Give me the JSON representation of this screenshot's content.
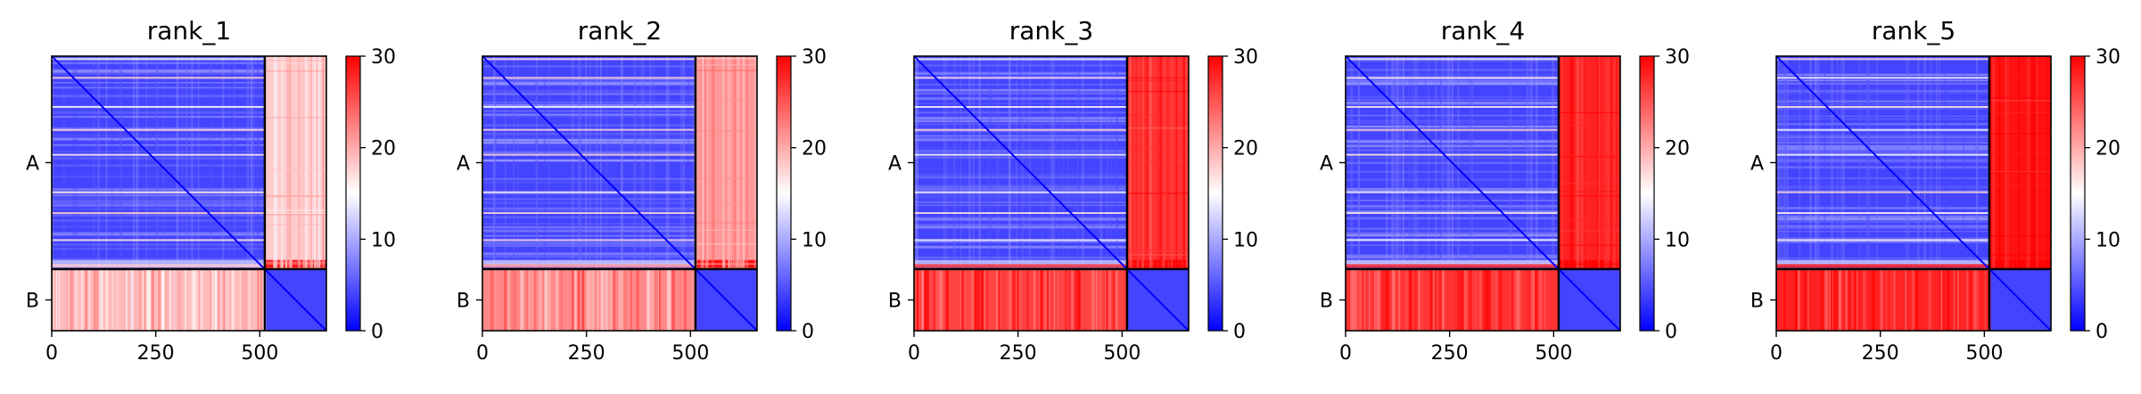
{
  "chart_data": {
    "type": "heatmap",
    "colormap": "bwr",
    "vmin": 0,
    "vmax": 30,
    "colorbar_ticks": [
      "0",
      "10",
      "20",
      "30"
    ],
    "x_ticks": [
      "0",
      "250",
      "500"
    ],
    "x_tick_values": [
      0,
      250,
      500
    ],
    "xlim": [
      0,
      660
    ],
    "chains": [
      {
        "label": "A",
        "start": 0,
        "end": 512
      },
      {
        "label": "B",
        "start": 512,
        "end": 660
      }
    ],
    "panels": [
      {
        "title": "rank_1",
        "intra_A": 4,
        "A_to_B": 18,
        "B_to_A": 19,
        "intra_B": 4
      },
      {
        "title": "rank_2",
        "intra_A": 4,
        "A_to_B": 21,
        "B_to_A": 22,
        "intra_B": 4
      },
      {
        "title": "rank_3",
        "intra_A": 4,
        "A_to_B": 27,
        "B_to_A": 26,
        "intra_B": 4
      },
      {
        "title": "rank_4",
        "intra_A": 4,
        "A_to_B": 28,
        "B_to_A": 27,
        "intra_B": 4
      },
      {
        "title": "rank_5",
        "intra_A": 4,
        "A_to_B": 29,
        "B_to_A": 28,
        "intra_B": 4
      }
    ]
  }
}
